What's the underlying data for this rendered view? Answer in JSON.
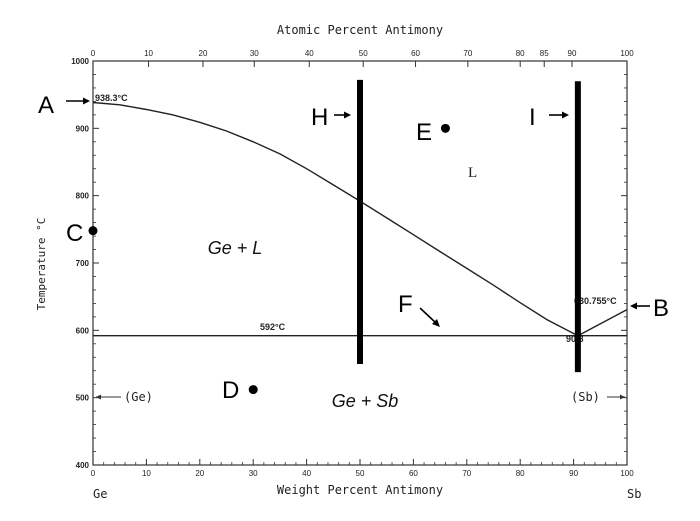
{
  "titles": {
    "top_axis": "Atomic Percent Antimony",
    "bottom_axis": "Weight Percent Antimony",
    "left_axis": "Temperature °C"
  },
  "axes": {
    "x_min": 0,
    "x_max": 100,
    "y_min": 400,
    "y_max": 1000,
    "y_ticks": [
      "400",
      "500",
      "600",
      "700",
      "800",
      "900",
      "1000"
    ],
    "bottom_ticks": [
      "0",
      "10",
      "20",
      "30",
      "40",
      "50",
      "60",
      "70",
      "80",
      "90",
      "100"
    ],
    "top_ticks": [
      {
        "label": "0",
        "wt": 0
      },
      {
        "label": "10",
        "wt": 10.4
      },
      {
        "label": "20",
        "wt": 20.6
      },
      {
        "label": "30",
        "wt": 30.2
      },
      {
        "label": "40",
        "wt": 40.5
      },
      {
        "label": "50",
        "wt": 50.6
      },
      {
        "label": "60",
        "wt": 60.4
      },
      {
        "label": "70",
        "wt": 70.2
      },
      {
        "label": "80",
        "wt": 80.0
      },
      {
        "label": "85",
        "wt": 84.5
      },
      {
        "label": "90",
        "wt": 89.7
      },
      {
        "label": "100",
        "wt": 100
      }
    ],
    "left_end": "Ge",
    "right_end": "Sb"
  },
  "curves": {
    "liquidus_ge": {
      "points": [
        [
          0,
          938.3
        ],
        [
          5,
          935
        ],
        [
          10,
          928
        ],
        [
          15,
          920
        ],
        [
          20,
          909
        ],
        [
          25,
          896
        ],
        [
          30,
          880
        ],
        [
          35,
          862
        ],
        [
          40,
          840
        ],
        [
          45,
          816
        ],
        [
          50,
          792
        ],
        [
          55,
          767
        ],
        [
          60,
          742
        ],
        [
          65,
          717
        ],
        [
          70,
          692
        ],
        [
          75,
          667
        ],
        [
          80,
          641
        ],
        [
          85,
          616
        ],
        [
          90.8,
          592
        ]
      ]
    },
    "liquidus_sb": {
      "points": [
        [
          90.8,
          592
        ],
        [
          100,
          630.755
        ]
      ]
    },
    "eutectic_line": {
      "points": [
        [
          0,
          592
        ],
        [
          100,
          592
        ]
      ]
    }
  },
  "annotations": {
    "ge_melt": "938.3°C",
    "sb_melt": "630.755°C",
    "eutectic_temp": "592°C",
    "eutectic_comp": "90.8",
    "ge_solid": "(Ge)",
    "sb_solid": "(Sb)",
    "region_liquid": "L",
    "region_ge_l": "Ge + L",
    "region_ge_sb": "Ge + Sb"
  },
  "markers": {
    "A": "A",
    "B": "B",
    "C": "C",
    "D": "D",
    "E": "E",
    "F": "F",
    "H": "H",
    "I": "I",
    "points": {
      "C": {
        "wt": 0,
        "temp": 748
      },
      "D": {
        "wt": 30,
        "temp": 512
      },
      "E": {
        "wt": 66,
        "temp": 900
      }
    },
    "lines": {
      "H": {
        "wt": 50,
        "temp_from": 550,
        "temp_to": 972
      },
      "I": {
        "wt": 90.8,
        "temp_from": 538,
        "temp_to": 970
      }
    }
  }
}
